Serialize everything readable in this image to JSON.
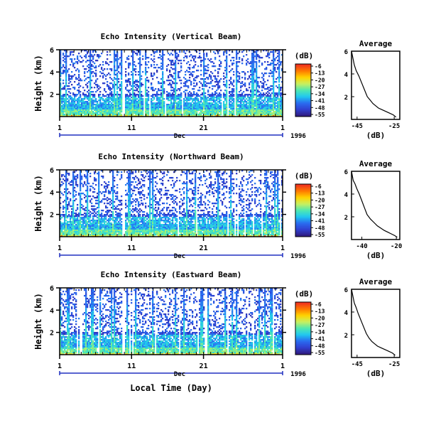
{
  "figure": {
    "xlabel_common": "Local Time (Day)"
  },
  "colorbar": {
    "unit": "(dB)",
    "ticks": [
      "-6",
      "-13",
      "-20",
      "-27",
      "-34",
      "-41",
      "-48",
      "-55"
    ],
    "stops": [
      "#f03020",
      "#ff7a00",
      "#ffd400",
      "#c8f060",
      "#50e8b0",
      "#20c8f0",
      "#2a6cf0",
      "#3040d0",
      "#301c80"
    ]
  },
  "chart_data": [
    {
      "type": "heatmap",
      "title": "Echo Intensity (Vertical Beam)",
      "ylabel": "Height (km)",
      "yticks": [
        "6",
        "4",
        "2"
      ],
      "xticks": [
        "1",
        "11",
        "21",
        "1"
      ],
      "month_label": "Dec",
      "year_label": "1996",
      "xlim": [
        1,
        32
      ],
      "ylim": [
        0,
        6
      ],
      "value_range_db": [
        -55,
        -6
      ]
    },
    {
      "type": "line",
      "title": "Average",
      "xticks": [
        "-45",
        "-25"
      ],
      "yticks": [
        "6",
        "4",
        "2"
      ],
      "xlabel": "(dB)",
      "xlim": [
        -48,
        -22
      ],
      "ylim": [
        0,
        6
      ],
      "x": [
        -48,
        -47.5,
        -47,
        -46.5,
        -45.5,
        -44,
        -42.5,
        -41,
        -39.5,
        -38,
        -36.5,
        -35,
        -33.5,
        -31.5,
        -29.5,
        -27.5,
        -25.5,
        -24
      ],
      "y": [
        6.0,
        5.6,
        5.2,
        4.8,
        4.3,
        3.8,
        3.2,
        2.6,
        2.0,
        1.7,
        1.4,
        1.2,
        1.0,
        0.85,
        0.7,
        0.55,
        0.4,
        0.2
      ]
    },
    {
      "type": "heatmap",
      "title": "Echo Intensity (Northward Beam)",
      "ylabel": "Height (km)",
      "yticks": [
        "6",
        "4",
        "2"
      ],
      "xticks": [
        "1",
        "11",
        "21",
        "1"
      ],
      "month_label": "Dec",
      "year_label": "1996",
      "xlim": [
        1,
        32
      ],
      "ylim": [
        0,
        6
      ],
      "value_range_db": [
        -55,
        -6
      ]
    },
    {
      "type": "line",
      "title": "Average",
      "xticks": [
        "-40",
        "-20"
      ],
      "yticks": [
        "6",
        "4",
        "2"
      ],
      "xlabel": "(dB)",
      "xlim": [
        -46,
        -18
      ],
      "ylim": [
        0,
        6
      ],
      "x": [
        -46,
        -45.5,
        -45,
        -44,
        -43,
        -41.5,
        -40,
        -38.5,
        -37,
        -35,
        -33,
        -31,
        -29,
        -27,
        -25,
        -23,
        -21,
        -19.5
      ],
      "y": [
        6.0,
        5.6,
        5.2,
        4.9,
        4.5,
        4.0,
        3.4,
        2.8,
        2.2,
        1.8,
        1.5,
        1.2,
        1.0,
        0.8,
        0.65,
        0.5,
        0.35,
        0.2
      ]
    },
    {
      "type": "heatmap",
      "title": "Echo Intensity (Eastward Beam)",
      "ylabel": "Height (km)",
      "yticks": [
        "6",
        "4",
        "2"
      ],
      "xticks": [
        "1",
        "11",
        "21",
        "1"
      ],
      "month_label": "Dec",
      "year_label": "1996",
      "xlim": [
        1,
        32
      ],
      "ylim": [
        0,
        6
      ],
      "value_range_db": [
        -55,
        -6
      ]
    },
    {
      "type": "line",
      "title": "Average",
      "xticks": [
        "-45",
        "-25"
      ],
      "yticks": [
        "6",
        "4",
        "2"
      ],
      "xlabel": "(dB)",
      "xlim": [
        -48,
        -22
      ],
      "ylim": [
        0,
        6
      ],
      "x": [
        -48,
        -47.5,
        -47,
        -46.5,
        -45.5,
        -44.5,
        -43,
        -41.5,
        -40,
        -38.5,
        -37,
        -35.5,
        -34,
        -32,
        -30,
        -28,
        -26,
        -24.5
      ],
      "y": [
        6.0,
        5.6,
        5.2,
        4.8,
        4.4,
        3.9,
        3.3,
        2.7,
        2.1,
        1.7,
        1.4,
        1.2,
        1.0,
        0.85,
        0.7,
        0.55,
        0.4,
        0.2
      ]
    }
  ]
}
